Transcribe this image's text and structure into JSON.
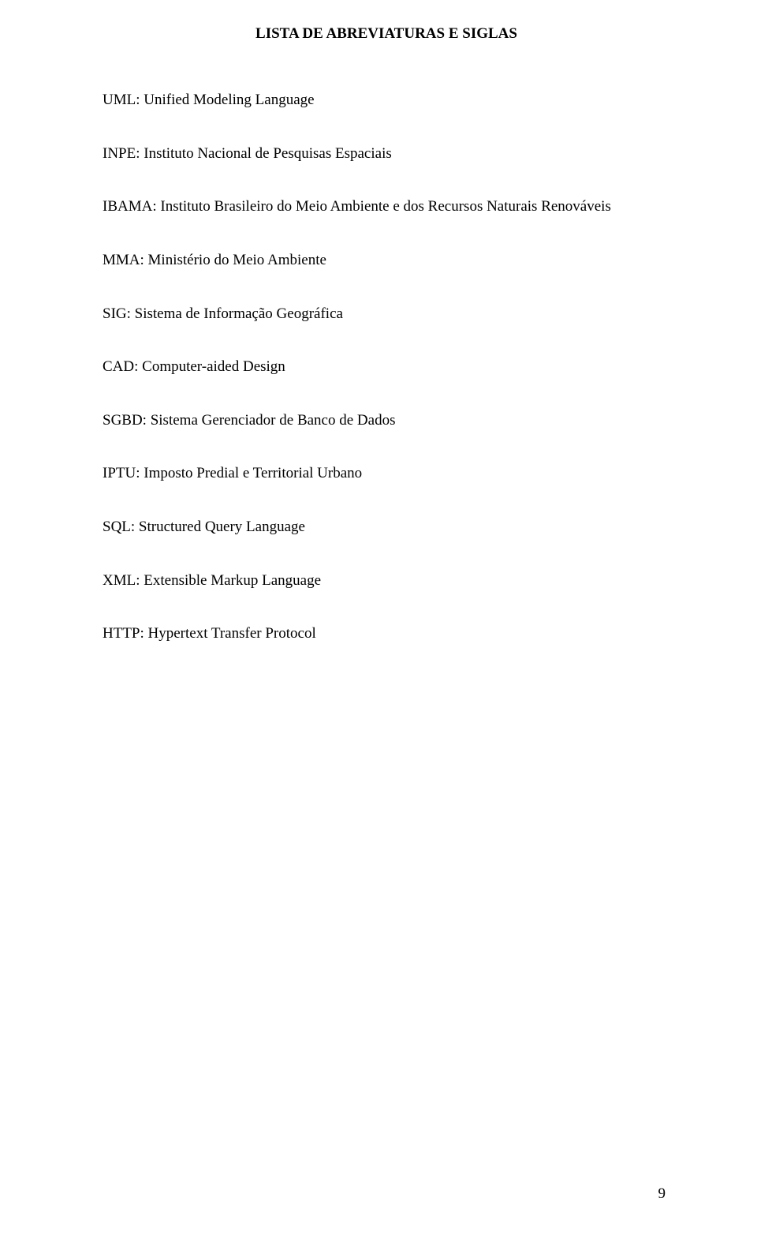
{
  "title": "LISTA DE ABREVIATURAS E SIGLAS",
  "entries": [
    "UML: Unified Modeling Language",
    "INPE: Instituto Nacional de Pesquisas Espaciais",
    "IBAMA: Instituto Brasileiro do Meio Ambiente e dos Recursos Naturais Renováveis",
    "MMA: Ministério do Meio Ambiente",
    "SIG: Sistema de Informação Geográfica",
    "CAD: Computer-aided Design",
    "SGBD: Sistema Gerenciador de Banco de Dados",
    "IPTU: Imposto Predial e Territorial Urbano",
    "SQL: Structured Query Language",
    "XML: Extensible Markup Language",
    "HTTP: Hypertext Transfer Protocol"
  ],
  "page_number": "9"
}
